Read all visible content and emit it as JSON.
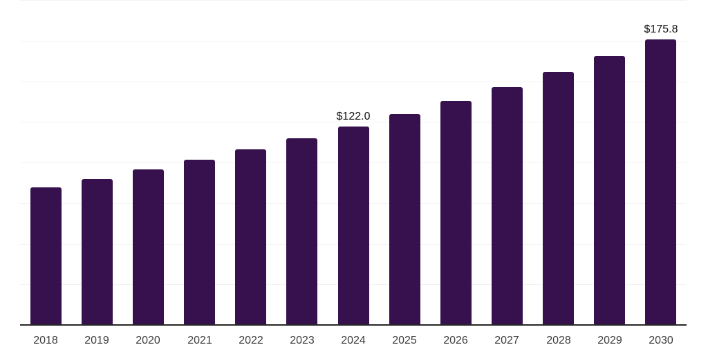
{
  "chart_data": {
    "type": "bar",
    "title": "",
    "xlabel": "",
    "ylabel": "",
    "categories": [
      "2018",
      "2019",
      "2020",
      "2021",
      "2022",
      "2023",
      "2024",
      "2025",
      "2026",
      "2027",
      "2028",
      "2029",
      "2030"
    ],
    "values": [
      84.7,
      90.0,
      95.6,
      101.6,
      108.0,
      114.8,
      122.0,
      129.7,
      137.8,
      146.5,
      155.7,
      165.4,
      175.8
    ],
    "data_labels": [
      {
        "index": 6,
        "text": "$122.0"
      },
      {
        "index": 12,
        "text": "$175.8"
      }
    ],
    "ylim": [
      0,
      200
    ],
    "gridline_step": 25,
    "grid": true,
    "legend_position": "none",
    "y_axis_ticks_visible": false,
    "colors": {
      "bar": "#36114D",
      "axis_line": "#262626",
      "gridline": "#f2f2f2",
      "data_label": "#111111",
      "tick_label": "#3d3d3d",
      "background": "#ffffff"
    }
  }
}
